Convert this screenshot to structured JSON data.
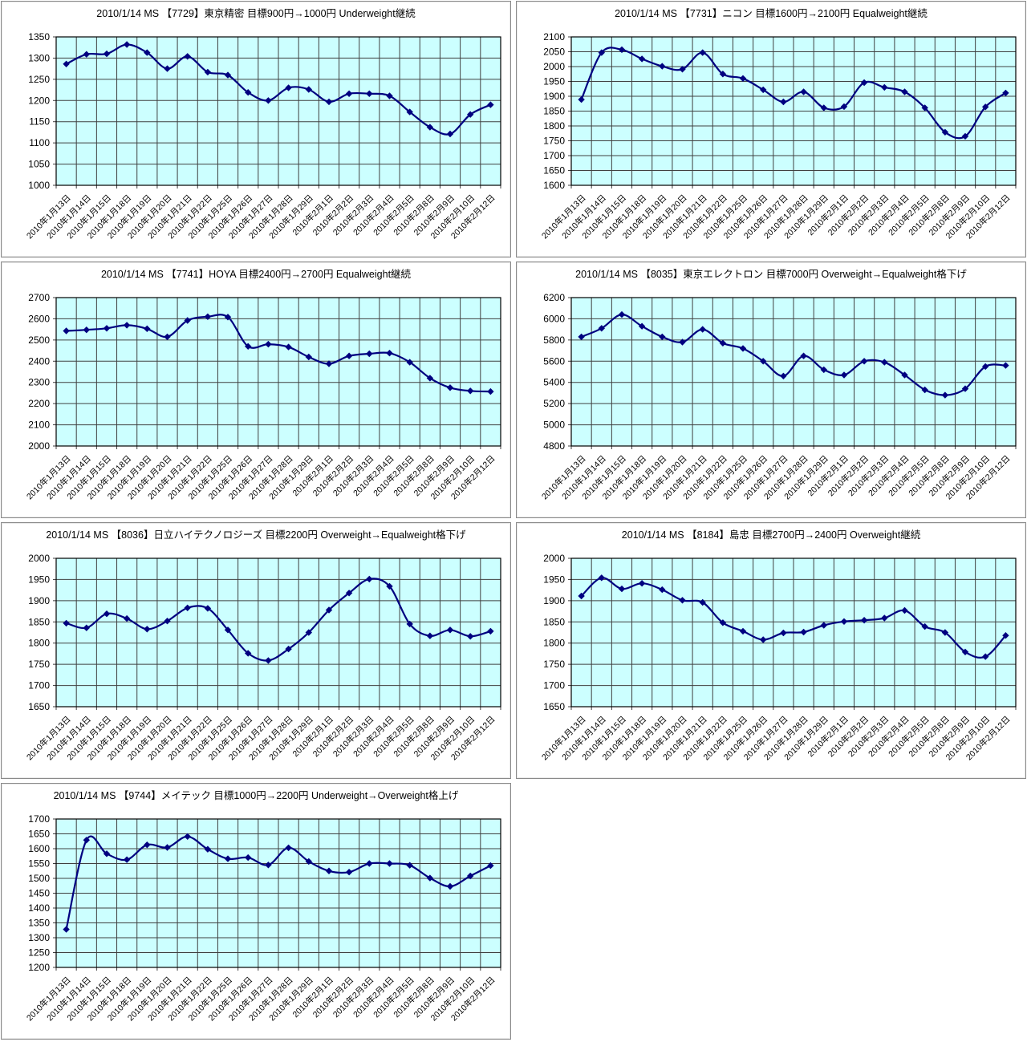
{
  "colors": {
    "background": "#ffffff",
    "plot_bg": "#ccffff",
    "grid": "#404040",
    "plot_border": "#000000",
    "series_line": "#000080",
    "marker": "#000080",
    "panel_border": "#8a8a8a",
    "text": "#000000"
  },
  "chart_data": [
    {
      "type": "line",
      "code": "7729",
      "title": "2010/1/14 MS 【7729】東京精密 目標900円→1000円 Underweight継続",
      "ylim": [
        1000,
        1350
      ],
      "ystep": 50,
      "yticks": [
        1350,
        1300,
        1250,
        1200,
        1150,
        1100,
        1050,
        1000
      ],
      "grid": true,
      "legend": "none",
      "line_smoothed": true,
      "marker": "diamond",
      "categories": [
        "2010年1月13日",
        "2010年1月14日",
        "2010年1月15日",
        "2010年1月18日",
        "2010年1月19日",
        "2010年1月20日",
        "2010年1月21日",
        "2010年1月22日",
        "2010年1月25日",
        "2010年1月26日",
        "2010年1月27日",
        "2010年1月28日",
        "2010年1月29日",
        "2010年2月1日",
        "2010年2月2日",
        "2010年2月3日",
        "2010年2月4日",
        "2010年2月5日",
        "2010年2月8日",
        "2010年2月9日",
        "2010年2月10日",
        "2010年2月12日"
      ],
      "values": [
        1286,
        1309,
        1310,
        1332,
        1313,
        1275,
        1304,
        1267,
        1260,
        1219,
        1200,
        1230,
        1226,
        1197,
        1216,
        1216,
        1211,
        1173,
        1137,
        1121,
        1167,
        1190
      ]
    },
    {
      "type": "line",
      "code": "7731",
      "title": "2010/1/14 MS 【7731】ニコン 目標1600円→2100円 Equalweight継続",
      "ylim": [
        1600,
        2100
      ],
      "ystep": 50,
      "yticks": [
        2100,
        2050,
        2000,
        1950,
        1900,
        1850,
        1800,
        1750,
        1700,
        1650,
        1600
      ],
      "grid": true,
      "legend": "none",
      "line_smoothed": true,
      "marker": "diamond",
      "categories": [
        "2010年1月13日",
        "2010年1月14日",
        "2010年1月15日",
        "2010年1月18日",
        "2010年1月19日",
        "2010年1月20日",
        "2010年1月21日",
        "2010年1月22日",
        "2010年1月25日",
        "2010年1月26日",
        "2010年1月27日",
        "2010年1月28日",
        "2010年1月29日",
        "2010年2月1日",
        "2010年2月2日",
        "2010年2月3日",
        "2010年2月4日",
        "2010年2月5日",
        "2010年2月8日",
        "2010年2月9日",
        "2010年2月10日",
        "2010年2月12日"
      ],
      "values": [
        1889,
        2047,
        2057,
        2026,
        2001,
        1991,
        2047,
        1975,
        1960,
        1922,
        1881,
        1915,
        1861,
        1865,
        1946,
        1930,
        1915,
        1861,
        1779,
        1765,
        1864,
        1911
      ]
    },
    {
      "type": "line",
      "code": "7741",
      "title": "2010/1/14 MS 【7741】HOYA 目標2400円→2700円 Equalweight継続",
      "ylim": [
        2000,
        2700
      ],
      "ystep": 100,
      "yticks": [
        2700,
        2600,
        2500,
        2400,
        2300,
        2200,
        2100,
        2000
      ],
      "grid": true,
      "legend": "none",
      "line_smoothed": true,
      "marker": "diamond",
      "categories": [
        "2010年1月13日",
        "2010年1月14日",
        "2010年1月15日",
        "2010年1月18日",
        "2010年1月19日",
        "2010年1月20日",
        "2010年1月21日",
        "2010年1月22日",
        "2010年1月25日",
        "2010年1月26日",
        "2010年1月27日",
        "2010年1月28日",
        "2010年1月29日",
        "2010年2月1日",
        "2010年2月2日",
        "2010年2月3日",
        "2010年2月4日",
        "2010年2月5日",
        "2010年2月8日",
        "2010年2月9日",
        "2010年2月10日",
        "2010年2月12日"
      ],
      "values": [
        2543,
        2548,
        2555,
        2570,
        2553,
        2515,
        2592,
        2610,
        2608,
        2470,
        2480,
        2467,
        2420,
        2388,
        2425,
        2435,
        2438,
        2395,
        2320,
        2275,
        2260,
        2257
      ]
    },
    {
      "type": "line",
      "code": "8035",
      "title": "2010/1/14 MS 【8035】東京エレクトロン 目標7000円 Overweight→Equalweight格下げ",
      "ylim": [
        4800,
        6200
      ],
      "ystep": 200,
      "yticks": [
        6200,
        6000,
        5800,
        5600,
        5400,
        5200,
        5000,
        4800
      ],
      "grid": true,
      "legend": "none",
      "line_smoothed": true,
      "marker": "diamond",
      "categories": [
        "2010年1月13日",
        "2010年1月14日",
        "2010年1月15日",
        "2010年1月18日",
        "2010年1月19日",
        "2010年1月20日",
        "2010年1月21日",
        "2010年1月22日",
        "2010年1月25日",
        "2010年1月26日",
        "2010年1月27日",
        "2010年1月28日",
        "2010年1月29日",
        "2010年2月1日",
        "2010年2月2日",
        "2010年2月3日",
        "2010年2月4日",
        "2010年2月5日",
        "2010年2月8日",
        "2010年2月9日",
        "2010年2月10日",
        "2010年2月12日"
      ],
      "values": [
        5830,
        5910,
        6040,
        5930,
        5830,
        5780,
        5900,
        5770,
        5720,
        5600,
        5460,
        5650,
        5520,
        5470,
        5600,
        5590,
        5470,
        5330,
        5280,
        5340,
        5550,
        5560
      ]
    },
    {
      "type": "line",
      "code": "8036",
      "title": "2010/1/14 MS 【8036】日立ハイテクノロジーズ 目標2200円 Overweight→Equalweight格下げ",
      "ylim": [
        1650,
        2000
      ],
      "ystep": 50,
      "yticks": [
        2000,
        1950,
        1900,
        1850,
        1800,
        1750,
        1700,
        1650
      ],
      "grid": true,
      "legend": "none",
      "line_smoothed": true,
      "marker": "diamond",
      "categories": [
        "2010年1月13日",
        "2010年1月14日",
        "2010年1月15日",
        "2010年1月18日",
        "2010年1月19日",
        "2010年1月20日",
        "2010年1月21日",
        "2010年1月22日",
        "2010年1月25日",
        "2010年1月26日",
        "2010年1月27日",
        "2010年1月28日",
        "2010年1月29日",
        "2010年2月1日",
        "2010年2月2日",
        "2010年2月3日",
        "2010年2月4日",
        "2010年2月5日",
        "2010年2月8日",
        "2010年2月9日",
        "2010年2月10日",
        "2010年2月12日"
      ],
      "values": [
        1847,
        1836,
        1869,
        1858,
        1833,
        1852,
        1883,
        1882,
        1831,
        1776,
        1759,
        1786,
        1825,
        1878,
        1918,
        1951,
        1934,
        1845,
        1817,
        1831,
        1816,
        1828
      ]
    },
    {
      "type": "line",
      "code": "8184",
      "title": "2010/1/14 MS 【8184】島忠 目標2700円→2400円 Overweight継続",
      "ylim": [
        1650,
        2000
      ],
      "ystep": 50,
      "yticks": [
        2000,
        1950,
        1900,
        1850,
        1800,
        1750,
        1700,
        1650
      ],
      "grid": true,
      "legend": "none",
      "line_smoothed": true,
      "marker": "diamond",
      "categories": [
        "2010年1月13日",
        "2010年1月14日",
        "2010年1月15日",
        "2010年1月18日",
        "2010年1月19日",
        "2010年1月20日",
        "2010年1月21日",
        "2010年1月22日",
        "2010年1月25日",
        "2010年1月26日",
        "2010年1月27日",
        "2010年1月28日",
        "2010年1月29日",
        "2010年2月1日",
        "2010年2月2日",
        "2010年2月3日",
        "2010年2月4日",
        "2010年2月5日",
        "2010年2月8日",
        "2010年2月9日",
        "2010年2月10日",
        "2010年2月12日"
      ],
      "values": [
        1911,
        1954,
        1928,
        1941,
        1926,
        1901,
        1896,
        1848,
        1828,
        1808,
        1824,
        1826,
        1842,
        1851,
        1854,
        1859,
        1877,
        1839,
        1825,
        1779,
        1768,
        1818
      ]
    },
    {
      "type": "line",
      "code": "9744",
      "title": "2010/1/14 MS 【9744】メイテック 目標1000円→2200円 Underweight→Overweight格上げ",
      "ylim": [
        1200,
        1700
      ],
      "ystep": 50,
      "yticks": [
        1700,
        1650,
        1600,
        1550,
        1500,
        1450,
        1400,
        1350,
        1300,
        1250,
        1200
      ],
      "grid": true,
      "legend": "none",
      "line_smoothed": true,
      "marker": "diamond",
      "categories": [
        "2010年1月13日",
        "2010年1月14日",
        "2010年1月15日",
        "2010年1月18日",
        "2010年1月19日",
        "2010年1月20日",
        "2010年1月21日",
        "2010年1月22日",
        "2010年1月25日",
        "2010年1月26日",
        "2010年1月27日",
        "2010年1月28日",
        "2010年1月29日",
        "2010年2月1日",
        "2010年2月2日",
        "2010年2月3日",
        "2010年2月4日",
        "2010年2月5日",
        "2010年2月8日",
        "2010年2月9日",
        "2010年2月10日",
        "2010年2月12日"
      ],
      "values": [
        1328,
        1629,
        1583,
        1563,
        1613,
        1604,
        1641,
        1598,
        1566,
        1570,
        1545,
        1603,
        1557,
        1525,
        1521,
        1550,
        1550,
        1544,
        1501,
        1473,
        1508,
        1543
      ]
    }
  ]
}
